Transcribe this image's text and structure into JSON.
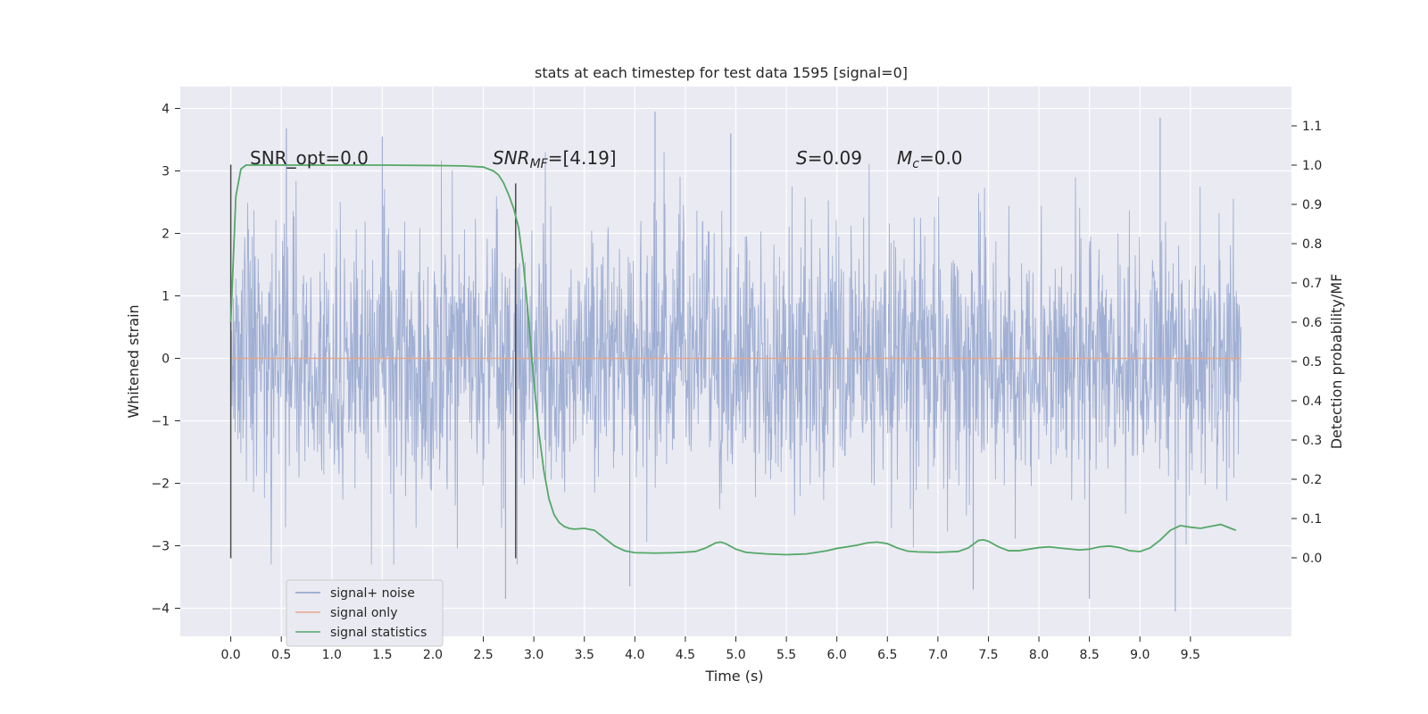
{
  "chart_data": {
    "type": "line",
    "title": "stats at each timestep for test data 1595 [signal=0]",
    "xlabel": "Time (s)",
    "ylabel": "Whitened strain",
    "ylabel_right": "Detection probability/MF",
    "xlim": [
      -0.5,
      10.5
    ],
    "ylim": [
      -4.45,
      4.35
    ],
    "ylim_right": [
      -0.2,
      1.2
    ],
    "x_ticks": [
      "0.0",
      "0.5",
      "1.0",
      "1.5",
      "2.0",
      "2.5",
      "3.0",
      "3.5",
      "4.0",
      "4.5",
      "5.0",
      "5.5",
      "6.0",
      "6.5",
      "7.0",
      "7.5",
      "8.0",
      "8.5",
      "9.0",
      "9.5"
    ],
    "x_tick_values": [
      0.0,
      0.5,
      1.0,
      1.5,
      2.0,
      2.5,
      3.0,
      3.5,
      4.0,
      4.5,
      5.0,
      5.5,
      6.0,
      6.5,
      7.0,
      7.5,
      8.0,
      8.5,
      9.0,
      9.5
    ],
    "y_ticks": [
      "−4",
      "−3",
      "−2",
      "−1",
      "0",
      "1",
      "2",
      "3",
      "4"
    ],
    "y_tick_values": [
      -4,
      -3,
      -2,
      -1,
      0,
      1,
      2,
      3,
      4
    ],
    "y_right_ticks": [
      "0.0",
      "0.1",
      "0.2",
      "0.3",
      "0.4",
      "0.5",
      "0.6",
      "0.7",
      "0.8",
      "0.9",
      "1.0",
      "1.1"
    ],
    "y_right_tick_values": [
      0.0,
      0.1,
      0.2,
      0.3,
      0.4,
      0.5,
      0.6,
      0.7,
      0.8,
      0.9,
      1.0,
      1.1
    ],
    "grid": true,
    "legend_position": "lower-left",
    "annotations": {
      "snr_opt": "SNR_opt=0.0",
      "snr_mf_base": "SNR",
      "snr_mf_sub": "MF",
      "snr_mf_value": "=[4.19]",
      "s_label": "S",
      "s_value": "=0.09",
      "mc_base": "M",
      "mc_sub": "c",
      "mc_value": "=0.0"
    },
    "vertical_markers": [
      {
        "x": 0.0,
        "y_range": [
          -3.2,
          3.1
        ]
      },
      {
        "x": 2.82,
        "y_range": [
          -3.2,
          2.8
        ]
      }
    ],
    "series": [
      {
        "name": "signal+ noise",
        "color": "#8da0cb",
        "axis": "left",
        "kind": "noise",
        "x_range": [
          0.0,
          10.0
        ],
        "sample_count": 2400,
        "sigma": 1.0,
        "peak_points": [
          {
            "x": 0.55,
            "y": 3.68
          },
          {
            "x": 1.5,
            "y": 3.55
          },
          {
            "x": 4.2,
            "y": 3.95
          },
          {
            "x": 4.95,
            "y": 3.6
          },
          {
            "x": 9.2,
            "y": 3.85
          },
          {
            "x": 2.72,
            "y": -3.85
          },
          {
            "x": 3.95,
            "y": -3.65
          },
          {
            "x": 8.5,
            "y": -3.85
          },
          {
            "x": 9.35,
            "y": -4.05
          },
          {
            "x": 7.35,
            "y": -3.7
          }
        ]
      },
      {
        "name": "signal only",
        "color": "#e5a88b",
        "axis": "left",
        "kind": "flat",
        "x": [
          0.0,
          10.0
        ],
        "y": [
          0.0,
          0.0
        ]
      },
      {
        "name": "signal statistics",
        "color": "#55a868",
        "axis": "right",
        "kind": "line",
        "x": [
          0.0,
          0.05,
          0.1,
          0.15,
          0.2,
          0.3,
          0.5,
          1.0,
          1.5,
          2.0,
          2.3,
          2.5,
          2.6,
          2.65,
          2.7,
          2.75,
          2.8,
          2.85,
          2.9,
          2.95,
          3.0,
          3.05,
          3.1,
          3.15,
          3.2,
          3.25,
          3.3,
          3.35,
          3.4,
          3.5,
          3.6,
          3.7,
          3.8,
          3.9,
          4.0,
          4.2,
          4.4,
          4.6,
          4.7,
          4.8,
          4.85,
          4.9,
          5.0,
          5.1,
          5.3,
          5.5,
          5.7,
          5.9,
          6.0,
          6.1,
          6.2,
          6.3,
          6.4,
          6.5,
          6.6,
          6.7,
          6.8,
          7.0,
          7.2,
          7.3,
          7.4,
          7.45,
          7.5,
          7.6,
          7.7,
          7.8,
          8.0,
          8.1,
          8.2,
          8.4,
          8.5,
          8.6,
          8.7,
          8.8,
          8.9,
          9.0,
          9.1,
          9.2,
          9.3,
          9.4,
          9.5,
          9.6,
          9.7,
          9.8,
          9.9,
          9.95
        ],
        "y": [
          0.6,
          0.92,
          0.99,
          1.0,
          1.0,
          1.0,
          1.0,
          1.0,
          1.0,
          0.999,
          0.998,
          0.995,
          0.985,
          0.975,
          0.955,
          0.925,
          0.89,
          0.84,
          0.74,
          0.6,
          0.45,
          0.32,
          0.22,
          0.15,
          0.11,
          0.09,
          0.08,
          0.075,
          0.073,
          0.075,
          0.07,
          0.05,
          0.03,
          0.018,
          0.013,
          0.012,
          0.013,
          0.016,
          0.025,
          0.038,
          0.04,
          0.036,
          0.022,
          0.014,
          0.01,
          0.008,
          0.01,
          0.018,
          0.024,
          0.028,
          0.032,
          0.038,
          0.04,
          0.036,
          0.025,
          0.017,
          0.015,
          0.014,
          0.016,
          0.025,
          0.044,
          0.046,
          0.042,
          0.028,
          0.018,
          0.018,
          0.026,
          0.028,
          0.025,
          0.02,
          0.022,
          0.028,
          0.03,
          0.026,
          0.018,
          0.016,
          0.025,
          0.045,
          0.07,
          0.082,
          0.078,
          0.075,
          0.08,
          0.085,
          0.075,
          0.07
        ]
      }
    ]
  }
}
